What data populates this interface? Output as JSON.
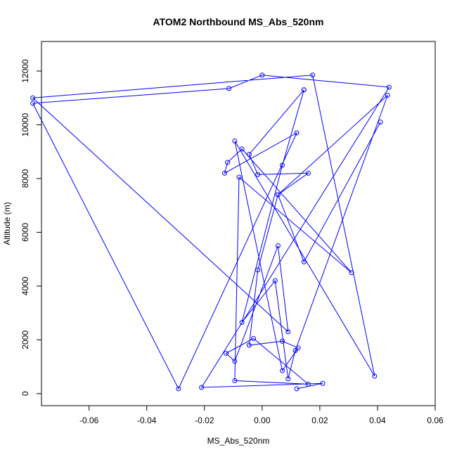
{
  "chart_data": {
    "type": "line",
    "title": "ATOM2 Northbound MS_Abs_520nm",
    "xlabel": "MS_Abs_520nm",
    "ylabel": "Altitude (m)",
    "xlim": [
      -0.0765,
      0.06
    ],
    "ylim": [
      -450,
      13100
    ],
    "x_ticks": [
      -0.06,
      -0.04,
      -0.02,
      0.0,
      0.02,
      0.04,
      0.06
    ],
    "x_tick_labels": [
      "-0.06",
      "-0.04",
      "-0.02",
      "0.00",
      "0.02",
      "0.04",
      "0.06"
    ],
    "y_ticks": [
      0,
      2000,
      4000,
      6000,
      8000,
      10000,
      12000
    ],
    "y_tick_labels": [
      "0",
      "2000",
      "4000",
      "6000",
      "8000",
      "10000",
      "12000"
    ],
    "grid": false,
    "color": "#0000ff",
    "series": [
      {
        "x": [
          0.012,
          0.021,
          -0.021,
          0.044,
          0.0,
          -0.0115,
          -0.0795,
          -0.029,
          0.012,
          -0.013,
          -0.012,
          -0.007,
          0.031,
          -0.008,
          -0.0095,
          0.016,
          -0.003,
          -0.0125,
          -0.0095,
          0.0055,
          0.009,
          -0.0795,
          0.0175,
          0.039,
          -0.0095,
          0.007,
          0.0125,
          0.007,
          -0.0045,
          -0.0015,
          0.0055,
          0.016,
          -0.0015,
          -0.0045,
          0.0145,
          0.0145,
          0.007,
          -0.007,
          0.0045,
          0.009,
          0.0115,
          0.0435,
          0.0055,
          0.0145,
          0.041
        ],
        "y": [
          180,
          380,
          230,
          11400,
          11850,
          11350,
          10800,
          180,
          9700,
          8200,
          8600,
          9100,
          4500,
          8050,
          480,
          350,
          2050,
          1500,
          1200,
          5500,
          2300,
          11000,
          11850,
          650,
          9400,
          850,
          1700,
          1950,
          1800,
          4600,
          7400,
          8200,
          8150,
          8900,
          11300,
          11300,
          8500,
          2650,
          4200,
          550,
          1600,
          11100,
          7400,
          4900,
          10100
        ]
      }
    ]
  }
}
